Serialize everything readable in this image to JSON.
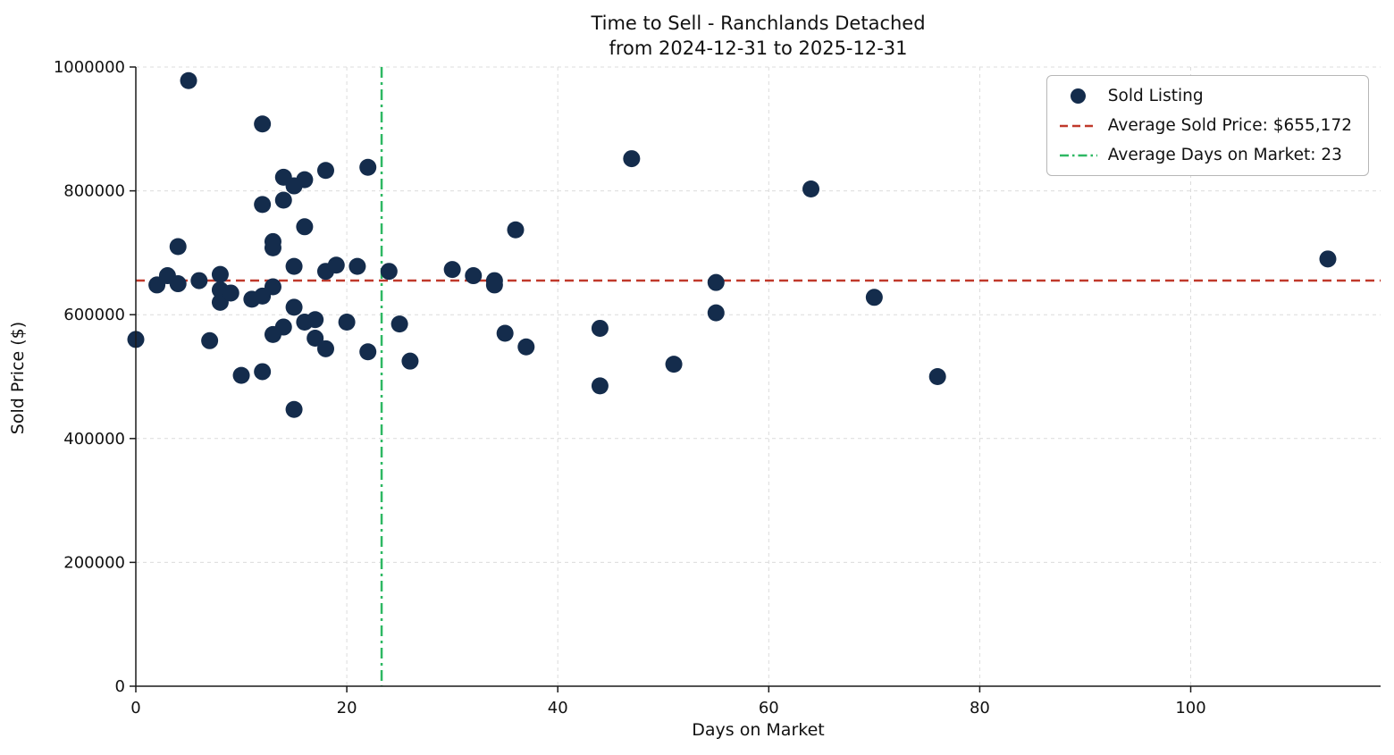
{
  "chart_data": {
    "type": "scatter",
    "title_line1": "Time to Sell - Ranchlands Detached",
    "title_line2": "from 2024-12-31 to 2025-12-31",
    "xlabel": "Days on Market",
    "ylabel": "Sold Price ($)",
    "xlim": [
      0,
      118
    ],
    "ylim": [
      0,
      1000000
    ],
    "xticks": [
      0,
      20,
      40,
      60,
      80,
      100
    ],
    "yticks": [
      0,
      200000,
      400000,
      600000,
      800000,
      1000000
    ],
    "grid": true,
    "legend_position": "upper right",
    "avg_sold_price": 655172,
    "avg_days_on_market": 23.3,
    "legend": {
      "sold_listing_label": "Sold Listing",
      "avg_price_label": "Average Sold Price: $655,172",
      "avg_days_label": "Average Days on Market: 23"
    },
    "colors": {
      "point": "#142c4c",
      "avg_price_line": "#c0392b",
      "avg_days_line": "#2eb863",
      "grid": "#dcdcdc",
      "spine": "#1a1a1a"
    },
    "points": [
      [
        0,
        560000
      ],
      [
        2,
        648000
      ],
      [
        3,
        663000
      ],
      [
        4,
        710000
      ],
      [
        4,
        650000
      ],
      [
        5,
        978000
      ],
      [
        6,
        655000
      ],
      [
        7,
        558000
      ],
      [
        8,
        665000
      ],
      [
        8,
        640000
      ],
      [
        8,
        620000
      ],
      [
        9,
        635000
      ],
      [
        10,
        502000
      ],
      [
        11,
        625000
      ],
      [
        12,
        908000
      ],
      [
        12,
        778000
      ],
      [
        12,
        630000
      ],
      [
        12,
        508000
      ],
      [
        13,
        718000
      ],
      [
        13,
        708000
      ],
      [
        13,
        645000
      ],
      [
        13,
        568000
      ],
      [
        14,
        822000
      ],
      [
        14,
        785000
      ],
      [
        14,
        580000
      ],
      [
        15,
        808000
      ],
      [
        15,
        678000
      ],
      [
        15,
        612000
      ],
      [
        15,
        447000
      ],
      [
        16,
        818000
      ],
      [
        16,
        742000
      ],
      [
        16,
        588000
      ],
      [
        17,
        592000
      ],
      [
        17,
        562000
      ],
      [
        18,
        833000
      ],
      [
        18,
        670000
      ],
      [
        18,
        545000
      ],
      [
        19,
        680000
      ],
      [
        20,
        588000
      ],
      [
        21,
        678000
      ],
      [
        22,
        838000
      ],
      [
        22,
        540000
      ],
      [
        24,
        670000
      ],
      [
        25,
        585000
      ],
      [
        26,
        525000
      ],
      [
        30,
        673000
      ],
      [
        32,
        663000
      ],
      [
        34,
        655000
      ],
      [
        34,
        648000
      ],
      [
        35,
        570000
      ],
      [
        36,
        737000
      ],
      [
        37,
        548000
      ],
      [
        44,
        578000
      ],
      [
        44,
        485000
      ],
      [
        47,
        852000
      ],
      [
        51,
        520000
      ],
      [
        55,
        652000
      ],
      [
        55,
        603000
      ],
      [
        64,
        803000
      ],
      [
        70,
        628000
      ],
      [
        76,
        500000
      ],
      [
        113,
        690000
      ]
    ]
  }
}
